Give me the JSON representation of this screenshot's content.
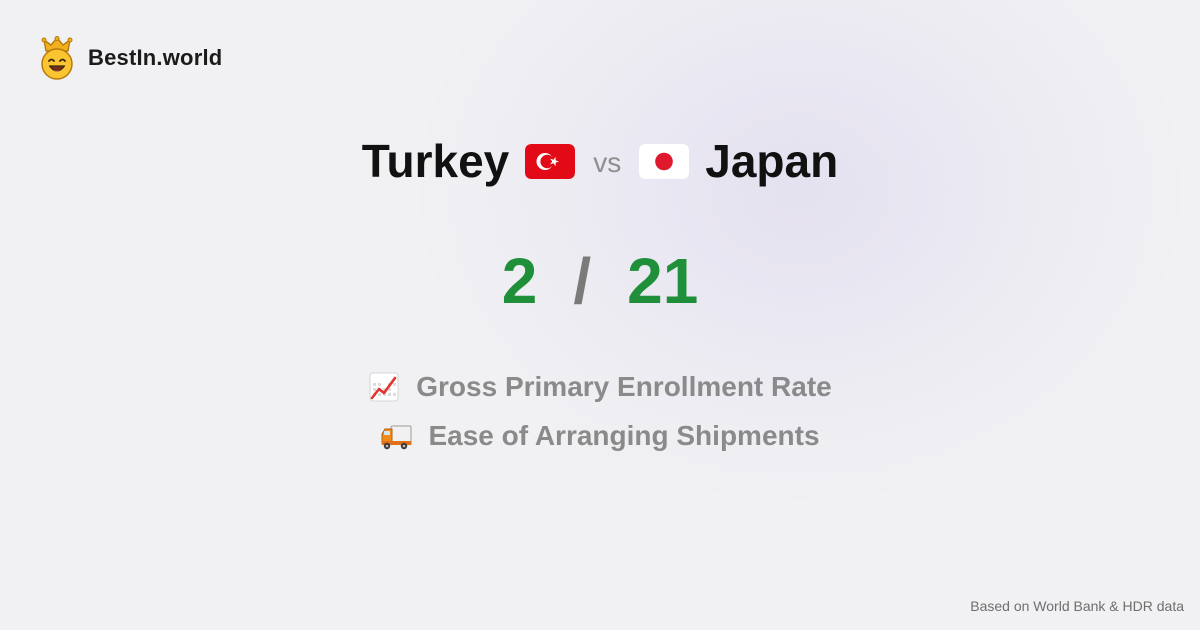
{
  "brand": {
    "name": "BestIn.world",
    "logo_icon": "smiling-crown-face-icon"
  },
  "comparison": {
    "left_country": "Turkey",
    "left_flag_icon": "turkey-flag-icon",
    "vs": "vs",
    "right_country": "Japan",
    "right_flag_icon": "japan-flag-icon"
  },
  "score": {
    "left": "2",
    "separator": "/",
    "right": "21",
    "color": "#1f8f3a"
  },
  "metrics": [
    {
      "icon": "chart-increasing-icon",
      "label": "Gross Primary Enrollment Rate"
    },
    {
      "icon": "delivery-truck-icon",
      "label": "Ease of Arranging Shipments"
    }
  ],
  "footer": {
    "source": "Based on World Bank & HDR data"
  }
}
